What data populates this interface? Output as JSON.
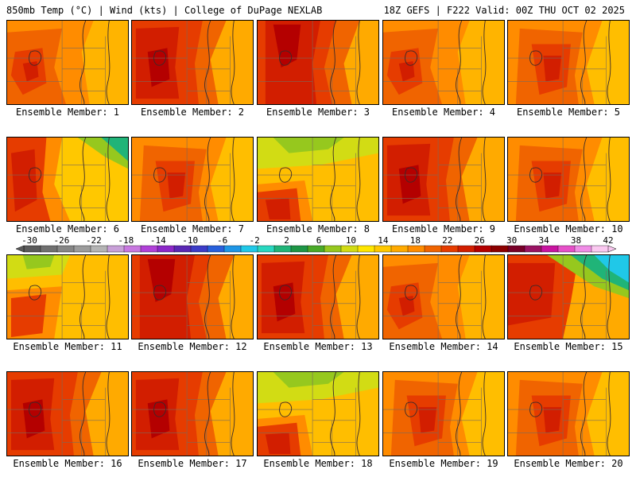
{
  "header": {
    "left_title": "850mb Temp (°C) | Wind (kts) | College of DuPage NEXLAB",
    "right_title": "18Z GEFS | F222 Valid: 00Z THU OCT 02 2025"
  },
  "colorbar": {
    "tick_labels": [
      "-30",
      "-26",
      "-22",
      "-18",
      "-14",
      "-10",
      "-6",
      "-2",
      "2",
      "6",
      "10",
      "14",
      "18",
      "22",
      "26",
      "30",
      "34",
      "38",
      "42"
    ],
    "colors": [
      "#5a5a5a",
      "#707070",
      "#868686",
      "#9c9c9c",
      "#b4b4b4",
      "#c8a0d8",
      "#c878e0",
      "#b040d8",
      "#8c28c8",
      "#5a28b4",
      "#3c3cc8",
      "#2860dc",
      "#1e96e6",
      "#20c8e8",
      "#28d8c0",
      "#20b478",
      "#1e9646",
      "#4aaa28",
      "#96c81e",
      "#d2dc14",
      "#ffe600",
      "#ffc800",
      "#ffaa00",
      "#ff8c00",
      "#f06400",
      "#e63c00",
      "#d21e00",
      "#b40000",
      "#8c0000",
      "#780028",
      "#9a1464",
      "#c814a0",
      "#e650c8",
      "#f08ce6",
      "#fac8f0"
    ]
  },
  "members": [
    {
      "label": "Ensemble Member: 1",
      "pattern": "warm-west"
    },
    {
      "label": "Ensemble Member: 2",
      "pattern": "hot-west"
    },
    {
      "label": "Ensemble Member: 3",
      "pattern": "hot-core"
    },
    {
      "label": "Ensemble Member: 4",
      "pattern": "warm-west"
    },
    {
      "label": "Ensemble Member: 5",
      "pattern": "warm-center"
    },
    {
      "label": "Ensemble Member: 6",
      "pattern": "cool-ne"
    },
    {
      "label": "Ensemble Member: 7",
      "pattern": "warm-center"
    },
    {
      "label": "Ensemble Member: 8",
      "pattern": "cool-north"
    },
    {
      "label": "Ensemble Member: 9",
      "pattern": "hot-west"
    },
    {
      "label": "Ensemble Member: 10",
      "pattern": "warm-center"
    },
    {
      "label": "Ensemble Member: 11",
      "pattern": "cool-nw"
    },
    {
      "label": "Ensemble Member: 12",
      "pattern": "hot-core"
    },
    {
      "label": "Ensemble Member: 13",
      "pattern": "hot-west"
    },
    {
      "label": "Ensemble Member: 14",
      "pattern": "warm-west"
    },
    {
      "label": "Ensemble Member: 15",
      "pattern": "cold-ne"
    },
    {
      "label": "Ensemble Member: 16",
      "pattern": "hot-west"
    },
    {
      "label": "Ensemble Member: 17",
      "pattern": "hot-west"
    },
    {
      "label": "Ensemble Member: 18",
      "pattern": "cool-north"
    },
    {
      "label": "Ensemble Member: 19",
      "pattern": "warm-center"
    },
    {
      "label": "Ensemble Member: 20",
      "pattern": "warm-center"
    }
  ]
}
